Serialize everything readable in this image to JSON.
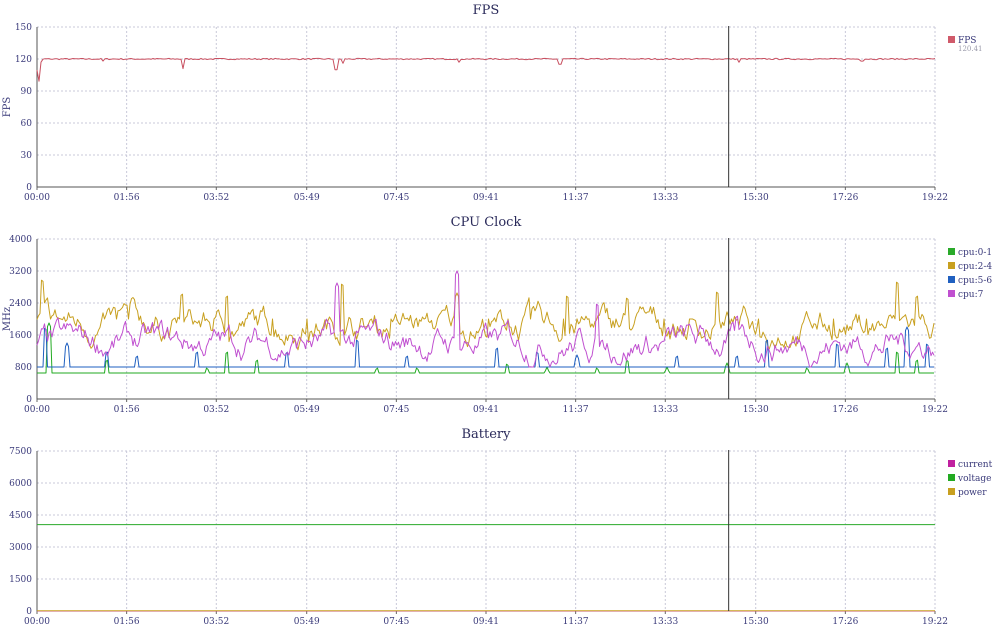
{
  "marker_time": "14:55",
  "chart_data": [
    {
      "type": "line",
      "title": "FPS",
      "ylabel": "FPS",
      "ylim": [
        0,
        150
      ],
      "yticks": [
        0,
        30,
        60,
        90,
        120,
        150
      ],
      "xlim": [
        "00:00",
        "19:22"
      ],
      "xticks": [
        "00:00",
        "01:56",
        "03:52",
        "05:49",
        "07:45",
        "09:41",
        "11:37",
        "13:33",
        "15:30",
        "17:26",
        "19:22"
      ],
      "grid": true,
      "legend_position": "right",
      "legend": [
        {
          "name": "FPS",
          "sub": "120.41",
          "color": "#d05a6a"
        }
      ],
      "series": [
        {
          "name": "FPS",
          "color": "#c85060",
          "typical": 120,
          "points": [
            [
              0,
              100
            ],
            [
              4,
              117
            ],
            [
              7,
              120
            ],
            [
              14,
              119
            ],
            [
              20,
              120
            ],
            [
              60,
              120
            ],
            [
              66,
              118
            ],
            [
              71,
              120
            ],
            [
              120,
              120
            ],
            [
              146,
              111
            ],
            [
              150,
              120
            ],
            [
              180,
              120
            ],
            [
              290,
              119
            ],
            [
              299,
              110
            ],
            [
              306,
              116
            ],
            [
              312,
              119
            ],
            [
              320,
              120
            ],
            [
              417,
              120
            ],
            [
              422,
              117
            ],
            [
              426,
              120
            ],
            [
              520,
              120
            ],
            [
              523,
              115
            ],
            [
              527,
              120
            ],
            [
              620,
              120
            ],
            [
              700,
              120
            ],
            [
              702,
              117
            ],
            [
              705,
              120
            ],
            [
              800,
              120
            ],
            [
              820,
              120
            ],
            [
              825,
              118
            ],
            [
              830,
              120
            ],
            [
              898,
              120
            ]
          ]
        }
      ]
    },
    {
      "type": "line",
      "title": "CPU Clock",
      "ylabel": "MHz",
      "ylim": [
        0,
        4000
      ],
      "yticks": [
        0,
        800,
        1600,
        2400,
        3200,
        4000
      ],
      "xlim": [
        "00:00",
        "19:22"
      ],
      "xticks": [
        "00:00",
        "01:56",
        "03:52",
        "05:49",
        "07:45",
        "09:41",
        "11:37",
        "13:33",
        "15:30",
        "17:26",
        "19:22"
      ],
      "grid": true,
      "legend_position": "right",
      "legend": [
        {
          "name": "cpu:0-1",
          "color": "#2aaa2a"
        },
        {
          "name": "cpu:2-4",
          "color": "#c8a020"
        },
        {
          "name": "cpu:5-6",
          "color": "#2060c0"
        },
        {
          "name": "cpu:7",
          "color": "#c050d0"
        }
      ],
      "series": [
        {
          "name": "cpu:0-1",
          "color": "#22aa22",
          "typical": 650,
          "spikes": [
            [
              12,
              1900
            ],
            [
              70,
              1000
            ],
            [
              170,
              800
            ],
            [
              190,
              1200
            ],
            [
              220,
              1000
            ],
            [
              340,
              800
            ],
            [
              380,
              800
            ],
            [
              470,
              900
            ],
            [
              510,
              800
            ],
            [
              560,
              800
            ],
            [
              590,
              1000
            ],
            [
              630,
              800
            ],
            [
              690,
              900
            ],
            [
              770,
              800
            ],
            [
              810,
              900
            ],
            [
              860,
              1200
            ],
            [
              880,
              1000
            ]
          ]
        },
        {
          "name": "cpu:2-4",
          "color": "#c8a020",
          "typical": 1850,
          "min": 1200,
          "max": 2600,
          "spikes": [
            [
              5,
              3000
            ],
            [
              145,
              2650
            ],
            [
              190,
              2600
            ],
            [
              305,
              2900
            ],
            [
              420,
              2650
            ],
            [
              530,
              2600
            ],
            [
              590,
              2550
            ],
            [
              680,
              2700
            ],
            [
              860,
              2950
            ],
            [
              880,
              2600
            ]
          ]
        },
        {
          "name": "cpu:5-6",
          "color": "#1e5fc0",
          "typical": 800,
          "spikes": [
            [
              8,
              1800
            ],
            [
              30,
              1400
            ],
            [
              70,
              1200
            ],
            [
              100,
              1100
            ],
            [
              160,
              1200
            ],
            [
              250,
              1200
            ],
            [
              320,
              1500
            ],
            [
              370,
              1100
            ],
            [
              460,
              1300
            ],
            [
              500,
              1200
            ],
            [
              540,
              1100
            ],
            [
              640,
              1100
            ],
            [
              700,
              1100
            ],
            [
              730,
              1500
            ],
            [
              800,
              1400
            ],
            [
              850,
              1300
            ],
            [
              870,
              1800
            ],
            [
              890,
              1400
            ]
          ]
        },
        {
          "name": "cpu:7",
          "color": "#c050d0",
          "typical": 1400,
          "min": 800,
          "max": 2200,
          "spikes": [
            [
              300,
              2900
            ],
            [
              420,
              3200
            ],
            [
              560,
              2400
            ],
            [
              700,
              2100
            ]
          ]
        }
      ]
    },
    {
      "type": "line",
      "title": "Battery",
      "ylabel": "",
      "ylim": [
        0,
        7500
      ],
      "yticks": [
        0,
        1500,
        3000,
        4500,
        6000,
        7500
      ],
      "xlim": [
        "00:00",
        "19:22"
      ],
      "xticks": [
        "00:00",
        "01:56",
        "03:52",
        "05:49",
        "07:45",
        "09:41",
        "11:37",
        "13:33",
        "15:30",
        "17:26",
        "19:22"
      ],
      "grid": true,
      "legend_position": "right",
      "legend": [
        {
          "name": "current",
          "color": "#c020a0"
        },
        {
          "name": "voltage",
          "color": "#22aa22"
        },
        {
          "name": "power",
          "color": "#c8a020"
        }
      ],
      "series": [
        {
          "name": "current",
          "color": "#c020a0",
          "points": [
            [
              0,
              0
            ],
            [
              898,
              0
            ]
          ]
        },
        {
          "name": "voltage",
          "color": "#2aaa2a",
          "points": [
            [
              0,
              4050
            ],
            [
              898,
              4050
            ]
          ]
        },
        {
          "name": "power",
          "color": "#c8a020",
          "points": [
            [
              0,
              10
            ],
            [
              898,
              10
            ]
          ]
        }
      ]
    }
  ]
}
